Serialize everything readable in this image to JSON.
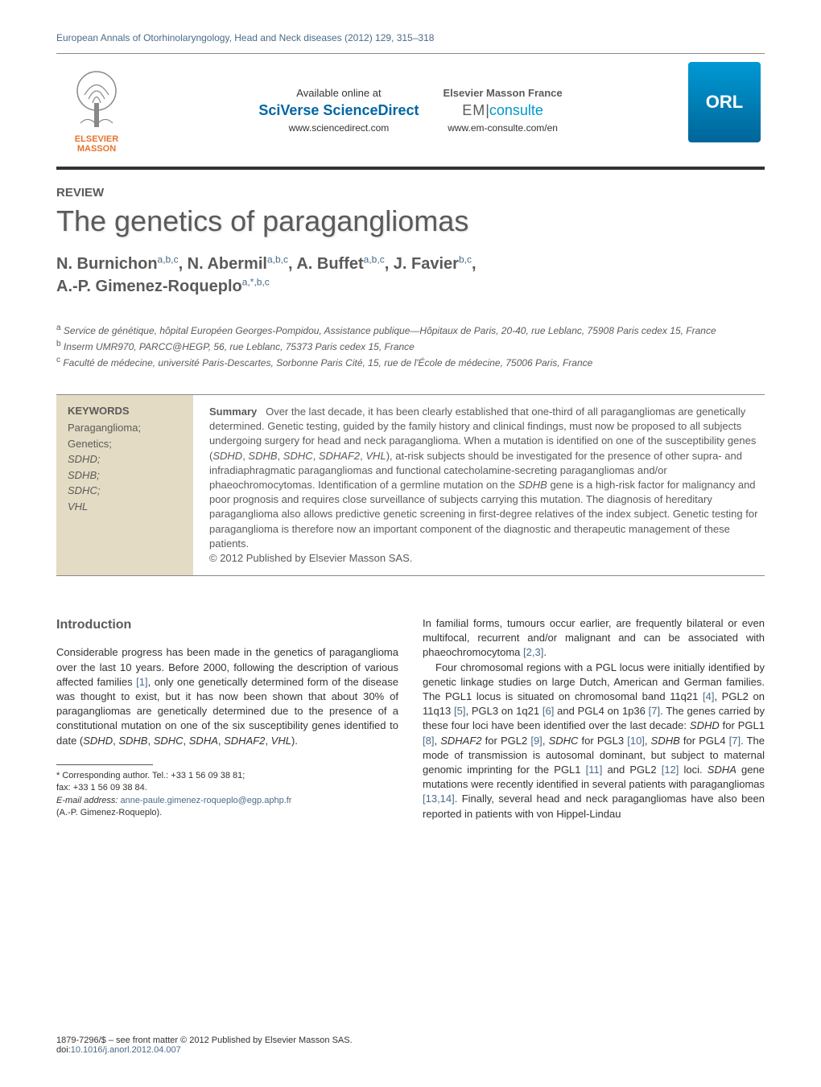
{
  "header": {
    "journal_line": "European Annals of Otorhinolaryngology, Head and Neck diseases (2012) 129, 315–318"
  },
  "banner": {
    "elsevier_label": "ELSEVIER",
    "masson_label": "MASSON",
    "available_online": "Available online at",
    "sciverse": "SciVerse ScienceDirect",
    "sd_url": "www.sciencedirect.com",
    "masson_france": "Elsevier Masson France",
    "em": "EM",
    "consulte": "consulte",
    "em_url": "www.em-consulte.com/en",
    "orl": "ORL"
  },
  "article": {
    "type": "REVIEW",
    "title": "The genetics of paragangliomas",
    "authors_html": "N. Burnichon<sup>a,b,c</sup>, N. Abermil<sup>a,b,c</sup>, A. Buffet<sup>a,b,c</sup>, J. Favier<sup>b,c</sup>,<br>A.-P. Gimenez-Roqueplo<sup>a,*,b,c</sup>",
    "affiliations": {
      "a": "Service de génétique, hôpital Européen Georges-Pompidou, Assistance publique—Hôpitaux de Paris, 20-40, rue Leblanc, 75908 Paris cedex 15, France",
      "b": "Inserm UMR970, PARCC@HEGP, 56, rue Leblanc, 75373 Paris cedex 15, France",
      "c": "Faculté de médecine, université Paris-Descartes, Sorbonne Paris Cité, 15, rue de l'École de médecine, 75006 Paris, France"
    }
  },
  "abstract": {
    "keywords_title": "KEYWORDS",
    "keywords": [
      "Paraganglioma;",
      "Genetics;",
      "SDHD;",
      "SDHB;",
      "SDHC;",
      "VHL"
    ],
    "keywords_italic_from_index": 2,
    "summary_label": "Summary",
    "summary_text": "Over the last decade, it has been clearly established that one-third of all paragangliomas are genetically determined. Genetic testing, guided by the family history and clinical findings, must now be proposed to all subjects undergoing surgery for head and neck paraganglioma. When a mutation is identified on one of the susceptibility genes (<span class=\"italic\">SDHD</span>, <span class=\"italic\">SDHB</span>, <span class=\"italic\">SDHC</span>, <span class=\"italic\">SDHAF2</span>, <span class=\"italic\">VHL</span>), at-risk subjects should be investigated for the presence of other supra- and infradiaphragmatic paragangliomas and functional catecholamine-secreting paragangliomas and/or phaeochromocytomas. Identification of a germline mutation on the <span class=\"italic\">SDHB</span> gene is a high-risk factor for malignancy and poor prognosis and requires close surveillance of subjects carrying this mutation. The diagnosis of hereditary paraganglioma also allows predictive genetic screening in first-degree relatives of the index subject. Genetic testing for paraganglioma is therefore now an important component of the diagnostic and therapeutic management of these patients.",
    "copyright": "© 2012 Published by Elsevier Masson SAS."
  },
  "body": {
    "intro_heading": "Introduction",
    "left_para": "Considerable progress has been made in the genetics of paraganglioma over the last 10 years. Before 2000, following the description of various affected families <span class=\"ref-link\">[1]</span>, only one genetically determined form of the disease was thought to exist, but it has now been shown that about 30% of paragangliomas are genetically determined due to the presence of a constitutional mutation on one of the six susceptibility genes identified to date (<span class=\"italic\">SDHD</span>, <span class=\"italic\">SDHB</span>, <span class=\"italic\">SDHC</span>, <span class=\"italic\">SDHA</span>, <span class=\"italic\">SDHAF2</span>, <span class=\"italic\">VHL</span>).",
    "right_para1": "In familial forms, tumours occur earlier, are frequently bilateral or even multifocal, recurrent and/or malignant and can be associated with phaeochromocytoma <span class=\"ref-link\">[2,3]</span>.",
    "right_para2": "Four chromosomal regions with a PGL locus were initially identified by genetic linkage studies on large Dutch, American and German families. The PGL1 locus is situated on chromosomal band 11q21 <span class=\"ref-link\">[4]</span>, PGL2 on 11q13 <span class=\"ref-link\">[5]</span>, PGL3 on 1q21 <span class=\"ref-link\">[6]</span> and PGL4 on 1p36 <span class=\"ref-link\">[7]</span>. The genes carried by these four loci have been identified over the last decade: <span class=\"italic\">SDHD</span> for PGL1 <span class=\"ref-link\">[8]</span>, <span class=\"italic\">SDHAF2</span> for PGL2 <span class=\"ref-link\">[9]</span>, <span class=\"italic\">SDHC</span> for PGL3 <span class=\"ref-link\">[10]</span>, <span class=\"italic\">SDHB</span> for PGL4 <span class=\"ref-link\">[7]</span>. The mode of transmission is autosomal dominant, but subject to maternal genomic imprinting for the PGL1 <span class=\"ref-link\">[11]</span> and PGL2 <span class=\"ref-link\">[12]</span> loci. <span class=\"italic\">SDHA</span> gene mutations were recently identified in several patients with paragangliomas <span class=\"ref-link\">[13,14]</span>. Finally, several head and neck paragangliomas have also been reported in patients with von Hippel-Lindau"
  },
  "footnotes": {
    "corresponding": "* Corresponding author. Tel.: +33 1 56 09 38 81;",
    "fax": "fax: +33 1 56 09 38 84.",
    "email_label": "E-mail address:",
    "email": "anne-paule.gimenez-roqueplo@egp.aphp.fr",
    "email_name": "(A.-P. Gimenez-Roqueplo)."
  },
  "footer": {
    "line1": "1879-7296/$ – see front matter © 2012 Published by Elsevier Masson SAS.",
    "doi_label": "doi:",
    "doi": "10.1016/j.anorl.2012.04.007"
  },
  "colors": {
    "link_color": "#4a6b8a",
    "heading_gray": "#5a5a5a",
    "keywords_bg": "#e4dbc4",
    "elsevier_orange": "#e8732c",
    "sciverse_blue": "#0066a4",
    "consulte_blue": "#0099cc",
    "orl_gradient_top": "#0099d4",
    "orl_gradient_bottom": "#006699"
  }
}
